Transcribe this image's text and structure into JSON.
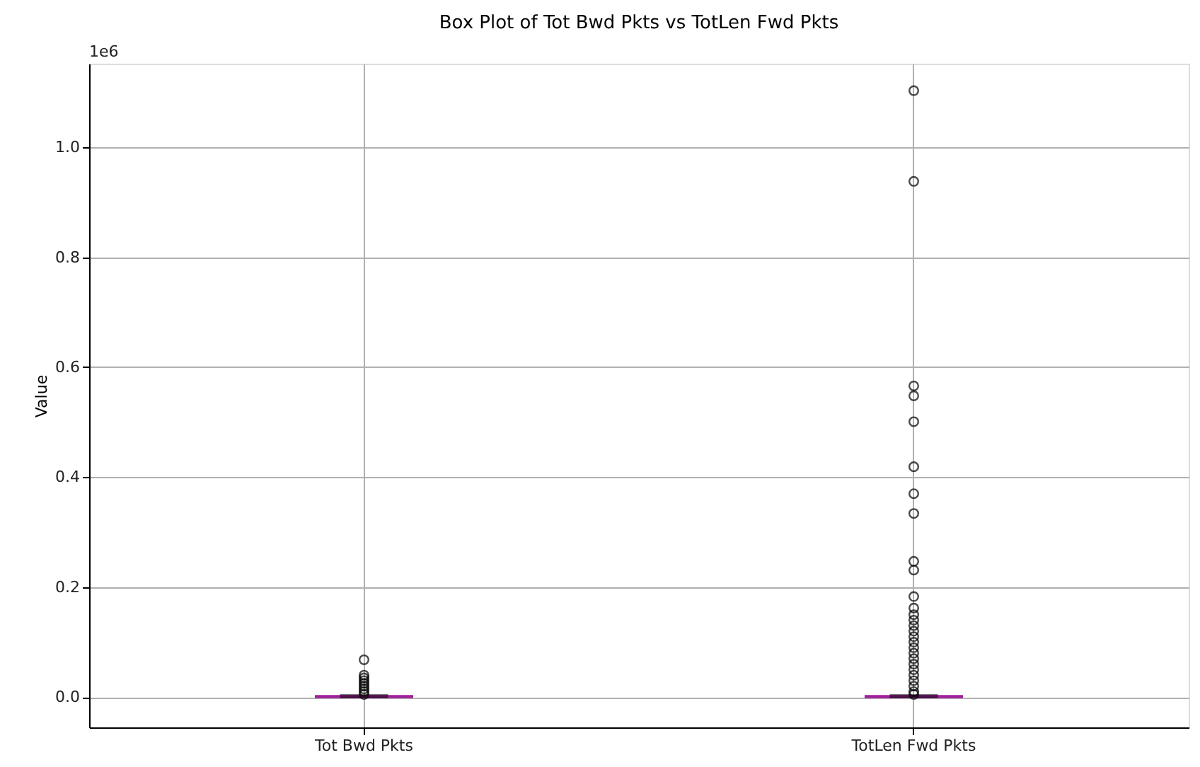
{
  "chart_data": {
    "type": "box",
    "title": "Box Plot of Tot Bwd Pkts vs TotLen Fwd Pkts",
    "ylabel": "Value",
    "annotations": [
      "1e6"
    ],
    "categories": [
      "Tot Bwd Pkts",
      "TotLen Fwd Pkts"
    ],
    "series": [
      {
        "color": "#a0209a",
        "boxes": [
          {
            "low": 0,
            "q1": 0,
            "median": 0.001,
            "q3": 0.002,
            "high": 0.004,
            "outliers": [
              0.068,
              0.04,
              0.035,
              0.03,
              0.025,
              0.02,
              0.015,
              0.01,
              0.005
            ]
          },
          {
            "low": 0,
            "q1": 0,
            "median": 0.001,
            "q3": 0.002,
            "high": 0.004,
            "outliers": [
              1.103,
              0.938,
              0.566,
              0.548,
              0.501,
              0.419,
              0.37,
              0.334,
              0.247,
              0.231,
              0.183,
              0.162,
              0.15,
              0.14,
              0.13,
              0.12,
              0.11,
              0.1,
              0.09,
              0.08,
              0.07,
              0.06,
              0.05,
              0.04,
              0.03,
              0.02,
              0.01,
              0.005
            ]
          }
        ]
      }
    ],
    "ylim": [
      -0.055,
      1.152
    ],
    "yticks": [
      {
        "value": 0,
        "label": "0.0"
      },
      0.2,
      0.4,
      0.6,
      0.8,
      {
        "value": 1,
        "label": "1.0"
      }
    ],
    "grid": true
  }
}
